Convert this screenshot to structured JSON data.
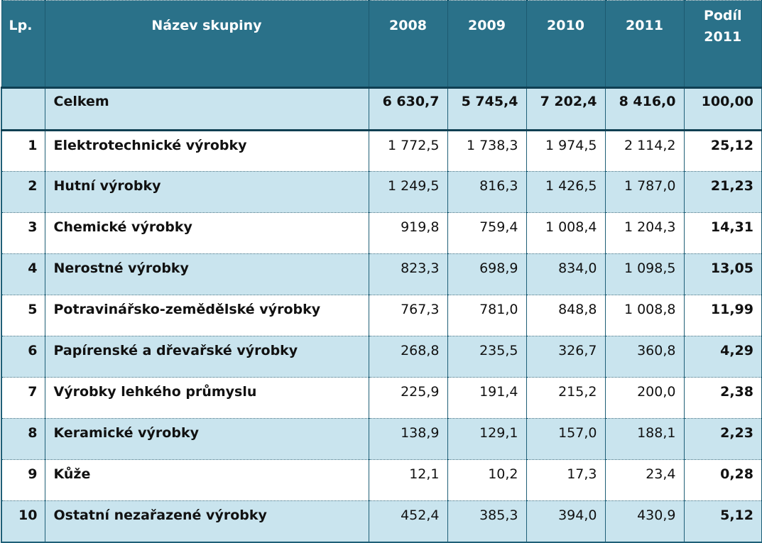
{
  "header": {
    "lp": "Lp.",
    "name": "Název skupiny",
    "years": [
      "2008",
      "2009",
      "2010",
      "2011"
    ],
    "share_line1": "Podíl",
    "share_line2": "2011"
  },
  "total": {
    "lp": "",
    "name": "Celkem",
    "values": [
      "6 630,7",
      "5 745,4",
      "7 202,4",
      "8 416,0"
    ],
    "share": "100,00"
  },
  "rows": [
    {
      "lp": "1",
      "name": "Elektrotechnické výrobky",
      "values": [
        "1 772,5",
        "1 738,3",
        "1 974,5",
        "2 114,2"
      ],
      "share": "25,12"
    },
    {
      "lp": "2",
      "name": "Hutní výrobky",
      "values": [
        "1 249,5",
        "816,3",
        "1 426,5",
        "1 787,0"
      ],
      "share": "21,23"
    },
    {
      "lp": "3",
      "name": "Chemické výrobky",
      "values": [
        "919,8",
        "759,4",
        "1 008,4",
        "1 204,3"
      ],
      "share": "14,31"
    },
    {
      "lp": "4",
      "name": "Nerostné výrobky",
      "values": [
        "823,3",
        "698,9",
        "834,0",
        "1 098,5"
      ],
      "share": "13,05"
    },
    {
      "lp": "5",
      "name": "Potravinářsko-zemědělské výrobky",
      "values": [
        "767,3",
        "781,0",
        "848,8",
        "1 008,8"
      ],
      "share": "11,99"
    },
    {
      "lp": "6",
      "name": "Papírenské a dřevařské výrobky",
      "values": [
        "268,8",
        "235,5",
        "326,7",
        "360,8"
      ],
      "share": "4,29"
    },
    {
      "lp": "7",
      "name": "Výrobky lehkého průmyslu",
      "values": [
        "225,9",
        "191,4",
        "215,2",
        "200,0"
      ],
      "share": "2,38"
    },
    {
      "lp": "8",
      "name": "Keramické výrobky",
      "values": [
        "138,9",
        "129,1",
        "157,0",
        "188,1"
      ],
      "share": "2,23"
    },
    {
      "lp": "9",
      "name": "Kůže",
      "values": [
        "12,1",
        "10,2",
        "17,3",
        "23,4"
      ],
      "share": "0,28"
    },
    {
      "lp": "10",
      "name": "Ostatní nezařazené výrobky",
      "values": [
        "452,4",
        "385,3",
        "394,0",
        "430,9"
      ],
      "share": "5,12"
    }
  ]
}
